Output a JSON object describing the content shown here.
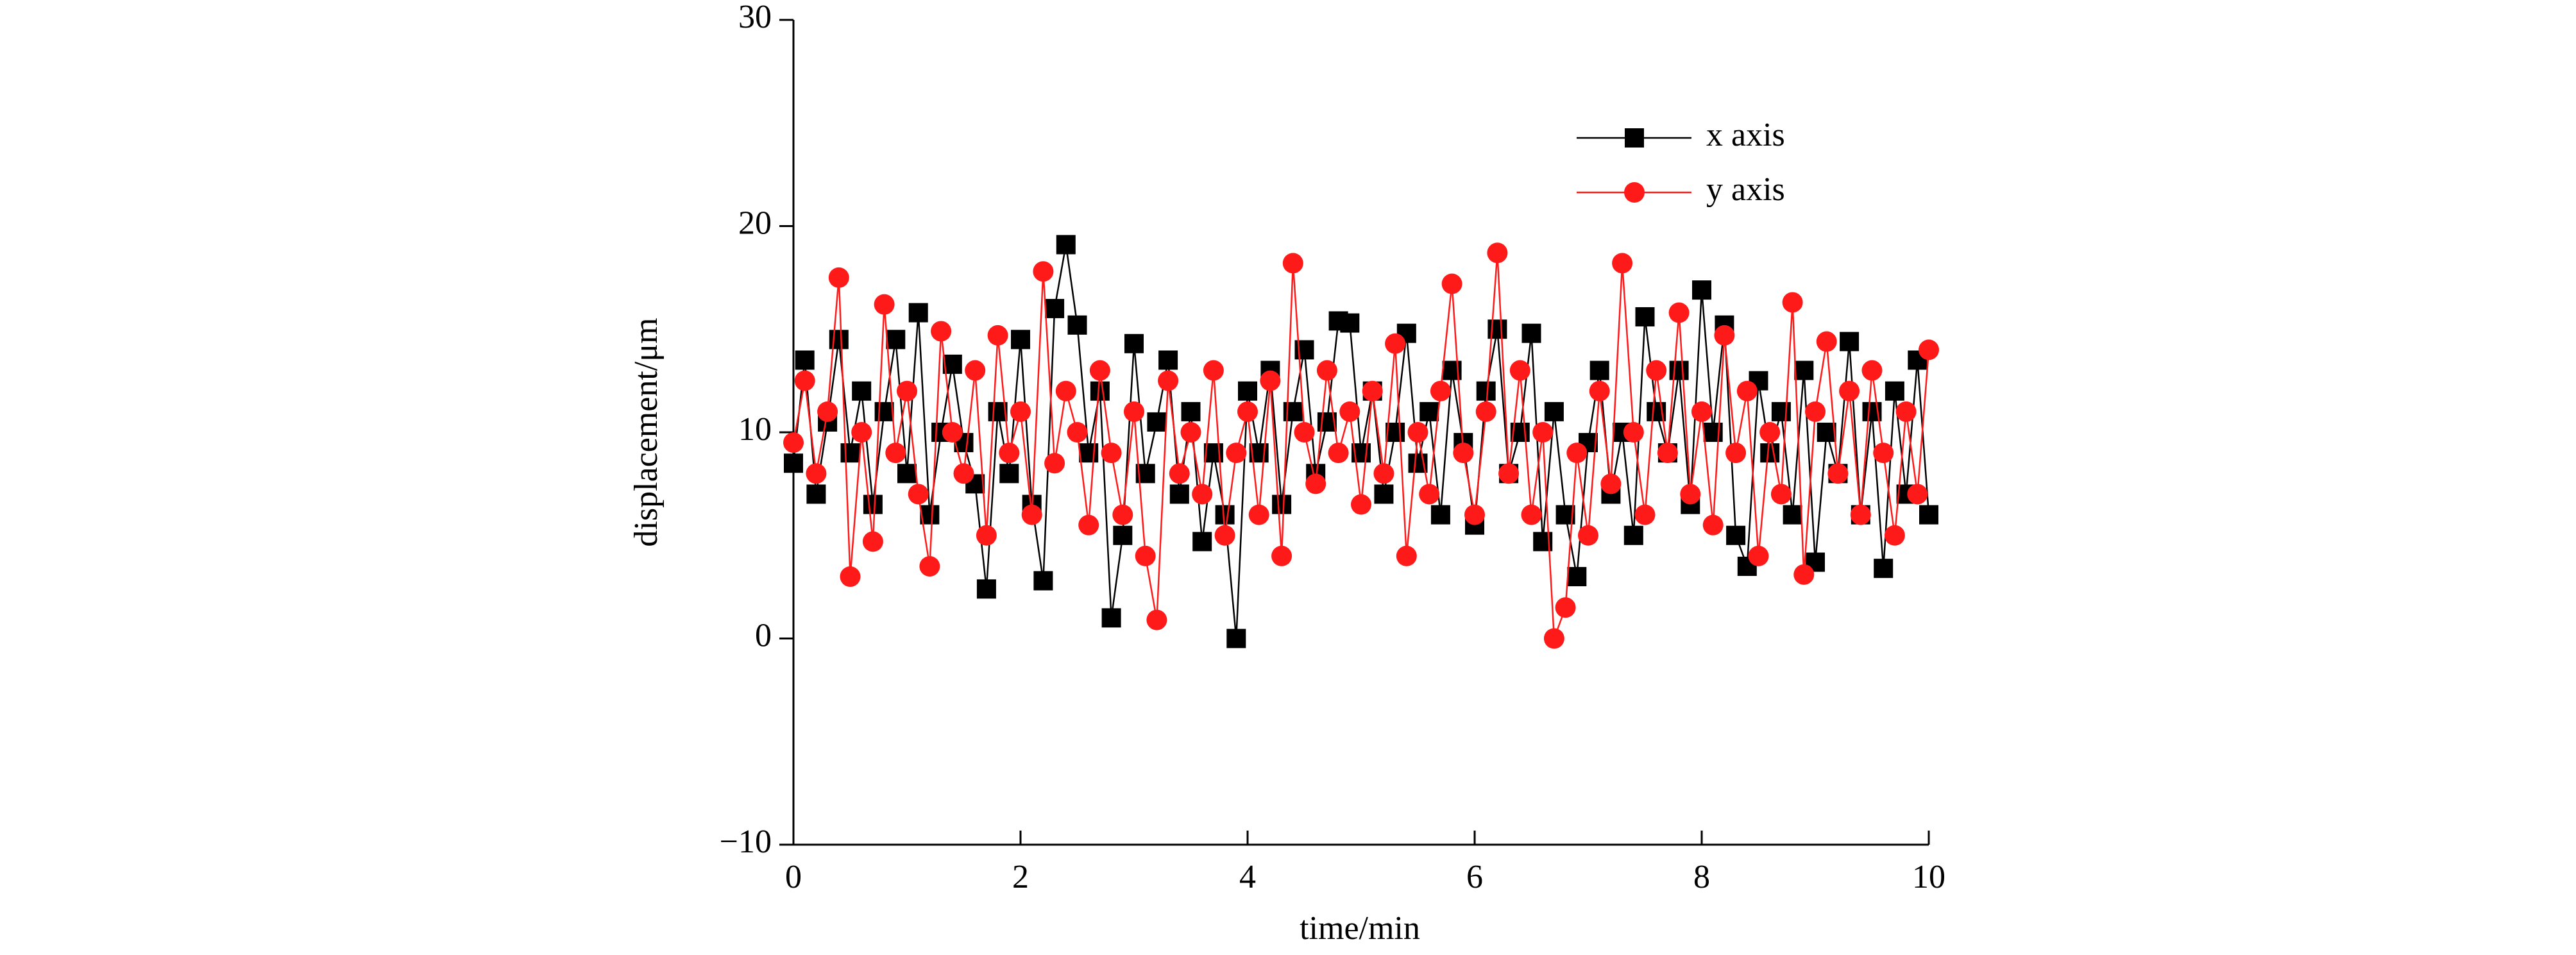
{
  "chart_data": {
    "type": "line",
    "x_label": "time/min",
    "y_label": "displacement/μm",
    "x": [
      0,
      0.1,
      0.2,
      0.3,
      0.4,
      0.5,
      0.6,
      0.7,
      0.8,
      0.9,
      1,
      1.1,
      1.2,
      1.3,
      1.4,
      1.5,
      1.6,
      1.7,
      1.8,
      1.9,
      2,
      2.1,
      2.2,
      2.3,
      2.4,
      2.5,
      2.6,
      2.7,
      2.8,
      2.9,
      3,
      3.1,
      3.2,
      3.3,
      3.4,
      3.5,
      3.6,
      3.7,
      3.8,
      3.9,
      4,
      4.1,
      4.2,
      4.3,
      4.4,
      4.5,
      4.6,
      4.7,
      4.8,
      4.9,
      5,
      5.1,
      5.2,
      5.3,
      5.4,
      5.5,
      5.6,
      5.7,
      5.8,
      5.9,
      6,
      6.1,
      6.2,
      6.3,
      6.4,
      6.5,
      6.6,
      6.7,
      6.8,
      6.9,
      7,
      7.1,
      7.2,
      7.3,
      7.4,
      7.5,
      7.6,
      7.7,
      7.8,
      7.9,
      8,
      8.1,
      8.2,
      8.3,
      8.4,
      8.5,
      8.6,
      8.7,
      8.8,
      8.9,
      9,
      9.1,
      9.2,
      9.3,
      9.4,
      9.5,
      9.6,
      9.7,
      9.8,
      9.9,
      10
    ],
    "series": [
      {
        "name": "x axis",
        "color": "#000000",
        "marker": "square",
        "values": [
          8.5,
          13.5,
          7,
          10.5,
          14.5,
          9,
          12,
          6.5,
          11,
          14.5,
          8,
          15.8,
          6,
          10,
          13.3,
          9.5,
          7.5,
          2.4,
          11,
          8,
          14.5,
          6.5,
          2.8,
          16,
          19.1,
          15.2,
          9,
          12,
          1,
          5,
          14.3,
          8,
          10.5,
          13.5,
          7,
          11,
          4.7,
          9,
          6,
          0,
          12,
          9,
          13,
          6.5,
          11,
          14,
          8,
          10.5,
          15.4,
          15.3,
          9,
          12,
          7,
          10,
          14.8,
          8.5,
          11,
          6,
          13,
          9.5,
          5.5,
          12,
          15,
          8,
          10,
          14.8,
          4.7,
          11,
          6,
          3,
          9.5,
          13,
          7,
          10,
          5,
          15.6,
          11,
          9,
          13,
          6.5,
          16.9,
          10,
          15.2,
          5,
          3.5,
          12.5,
          9,
          11,
          6,
          13,
          3.7,
          10,
          8,
          14.4,
          6,
          11,
          3.4,
          12,
          7,
          13.5,
          6
        ]
      },
      {
        "name": "y axis",
        "color": "#ff1a1a",
        "marker": "circle",
        "values": [
          9.5,
          12.5,
          8,
          11,
          17.5,
          3,
          10,
          4.7,
          16.2,
          9,
          12,
          7,
          3.5,
          14.9,
          10,
          8,
          13,
          5,
          14.7,
          9,
          11,
          6,
          17.8,
          8.5,
          12,
          10,
          5.5,
          13,
          9,
          6,
          11,
          4,
          0.9,
          12.5,
          8,
          10,
          7,
          13,
          5,
          9,
          11,
          6,
          12.5,
          4,
          18.2,
          10,
          7.5,
          13,
          9,
          11,
          6.5,
          12,
          8,
          14.3,
          4,
          10,
          7,
          12,
          17.2,
          9,
          6,
          11,
          18.7,
          8,
          13,
          6,
          10,
          0,
          1.5,
          9,
          5,
          12,
          7.5,
          18.2,
          10,
          6,
          13,
          9,
          15.8,
          7,
          11,
          5.5,
          14.7,
          9,
          12,
          4,
          10,
          7,
          16.3,
          3.1,
          11,
          14.4,
          8,
          12,
          6,
          13,
          9,
          5,
          11,
          7,
          14
        ]
      }
    ],
    "xlim": [
      0,
      10
    ],
    "xticks": [
      0,
      2,
      4,
      6,
      8,
      10
    ],
    "ylim": [
      -10,
      30
    ],
    "yticks": [
      {
        "value": -10,
        "label": "−10"
      },
      0,
      10,
      20,
      30
    ],
    "legend": "upper-right"
  }
}
